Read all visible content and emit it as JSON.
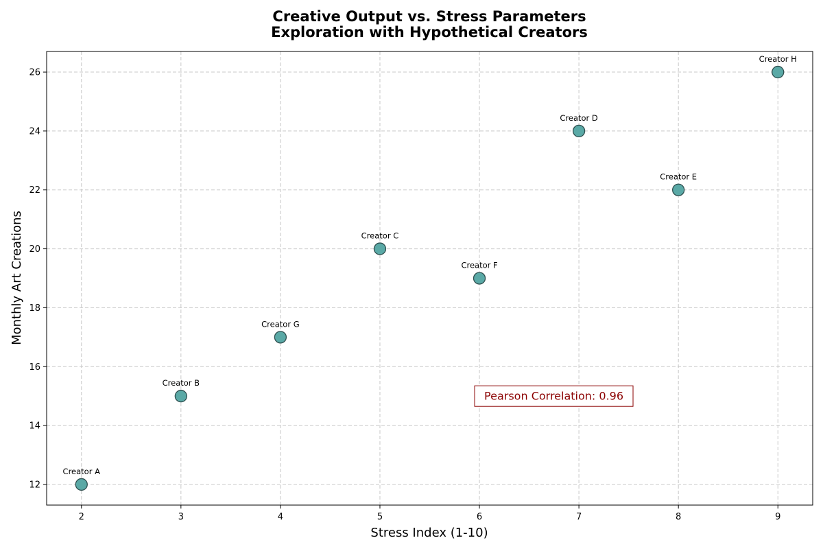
{
  "chart_data": {
    "type": "scatter",
    "title_lines": [
      "Creative Output vs. Stress Parameters",
      "Exploration with Hypothetical Creators"
    ],
    "xlabel": "Stress Index (1-10)",
    "ylabel": "Monthly Art Creations",
    "xlim": [
      1.65,
      9.35
    ],
    "ylim": [
      11.3,
      26.7
    ],
    "x_ticks": [
      2,
      3,
      4,
      5,
      6,
      7,
      8,
      9
    ],
    "y_ticks": [
      12,
      14,
      16,
      18,
      20,
      22,
      24,
      26
    ],
    "grid": true,
    "points": [
      {
        "label": "Creator A",
        "x": 2,
        "y": 12
      },
      {
        "label": "Creator B",
        "x": 3,
        "y": 15
      },
      {
        "label": "Creator C",
        "x": 5,
        "y": 20
      },
      {
        "label": "Creator D",
        "x": 7,
        "y": 24
      },
      {
        "label": "Creator E",
        "x": 8,
        "y": 22
      },
      {
        "label": "Creator F",
        "x": 6,
        "y": 19
      },
      {
        "label": "Creator G",
        "x": 4,
        "y": 17
      },
      {
        "label": "Creator H",
        "x": 9,
        "y": 26
      }
    ],
    "annotation": {
      "text": "Pearson Correlation: 0.96",
      "x": 6,
      "y": 15
    },
    "colors": {
      "marker_fill": "#5aa9a6",
      "marker_edge": "#2f4f4f",
      "annotation": "#8b0000"
    }
  }
}
